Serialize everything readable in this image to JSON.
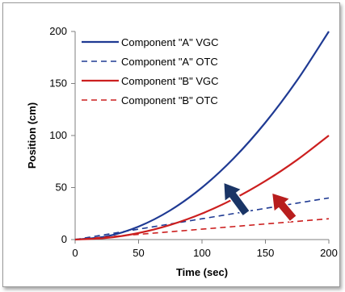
{
  "chart_data": {
    "type": "line",
    "title": "",
    "xlabel": "Time (sec)",
    "ylabel": "Position (cm)",
    "xlim": [
      0,
      200
    ],
    "ylim": [
      0,
      200
    ],
    "xticks": [
      0,
      50,
      100,
      150,
      200
    ],
    "yticks": [
      0,
      50,
      100,
      150,
      200
    ],
    "grid": false,
    "legend": "top-left",
    "x": [
      0,
      25,
      50,
      75,
      100,
      125,
      150,
      175,
      200
    ],
    "series": [
      {
        "name": "Component \"A\" VGC",
        "color": "#1f3a93",
        "style": "solid",
        "values": [
          0,
          3.1,
          12.5,
          28.1,
          50,
          78.1,
          112.5,
          153.1,
          200
        ]
      },
      {
        "name": "Component \"A\" OTC",
        "color": "#1f3a93",
        "style": "dashed",
        "values": [
          0,
          5,
          10,
          15,
          20,
          25,
          30,
          35,
          40
        ]
      },
      {
        "name": "Component \"B\" VGC",
        "color": "#cc1f1f",
        "style": "solid",
        "values": [
          0,
          1.6,
          6.3,
          14.1,
          25,
          39.1,
          56.3,
          76.6,
          100
        ]
      },
      {
        "name": "Component \"B\" OTC",
        "color": "#cc1f1f",
        "style": "dashed",
        "values": [
          0,
          2.5,
          5,
          7.5,
          10,
          12.5,
          15,
          17.5,
          20
        ]
      }
    ],
    "annotations": [
      {
        "kind": "arrow",
        "color": "#1a3566",
        "from": [
          135,
          25
        ],
        "to": [
          117,
          55
        ]
      },
      {
        "kind": "arrow",
        "color": "#b81e1e",
        "from": [
          172,
          20
        ],
        "to": [
          155,
          45
        ]
      }
    ]
  }
}
